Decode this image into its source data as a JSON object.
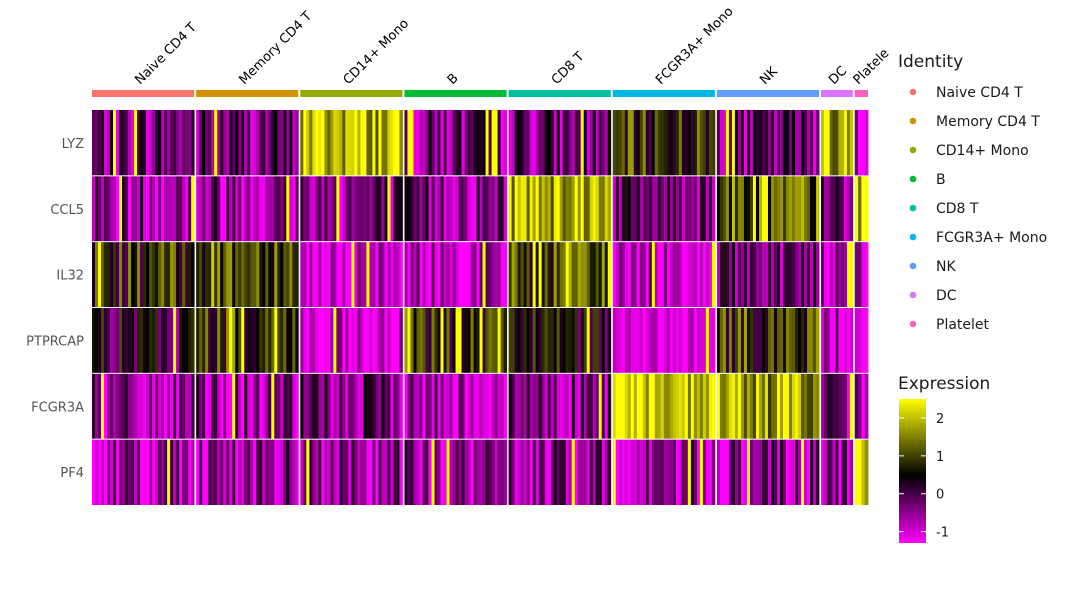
{
  "chart_data": {
    "type": "heatmap",
    "title": "",
    "genes": [
      "LYZ",
      "CCL5",
      "IL32",
      "PTPRCAP",
      "FCGR3A",
      "PF4"
    ],
    "clusters": [
      {
        "name": "Naive CD4 T",
        "color": "#f8766d",
        "label": "Naive CD4 T",
        "rel_cells": 100
      },
      {
        "name": "Memory CD4 T",
        "color": "#d39200",
        "label": "Memory CD4 T",
        "rel_cells": 100
      },
      {
        "name": "CD14+ Mono",
        "color": "#93aa00",
        "label": "CD14+ Mono",
        "rel_cells": 100
      },
      {
        "name": "B",
        "color": "#00ba38",
        "label": "B",
        "rel_cells": 100
      },
      {
        "name": "CD8 T",
        "color": "#00c19f",
        "label": "CD8 T",
        "rel_cells": 100
      },
      {
        "name": "FCGR3A+ Mono",
        "color": "#00b9e3",
        "label": "FCGR3A+ Mono",
        "rel_cells": 100
      },
      {
        "name": "NK",
        "color": "#619cff",
        "label": "NK",
        "rel_cells": 100
      },
      {
        "name": "DC",
        "color": "#db72fb",
        "label": "DC",
        "rel_cells": 31
      },
      {
        "name": "Platelet",
        "color": "#ff61c3",
        "label": "Platele",
        "rel_cells": 13
      }
    ],
    "mean_expression": [
      [
        -0.3,
        -0.3,
        2.0,
        -0.4,
        -0.3,
        0.8,
        -0.3,
        1.7,
        -0.6
      ],
      [
        -0.5,
        -0.5,
        -0.4,
        -0.4,
        2.0,
        -0.2,
        1.2,
        -0.3,
        2.2
      ],
      [
        0.8,
        1.2,
        -1.1,
        -0.9,
        1.0,
        -0.8,
        -0.2,
        -0.9,
        -0.9
      ],
      [
        0.2,
        0.9,
        -1.2,
        0.8,
        0.4,
        -1.3,
        0.9,
        -0.7,
        -0.9
      ],
      [
        -0.7,
        -0.6,
        -0.4,
        -0.7,
        -0.4,
        2.2,
        1.8,
        -0.6,
        -0.8
      ],
      [
        -0.6,
        -0.6,
        -0.6,
        -0.6,
        -0.6,
        -0.6,
        -0.6,
        -0.6,
        2.4
      ]
    ],
    "color_scale": {
      "low": "#ff00ff",
      "mid": "#000000",
      "high": "#ffff00",
      "domain": [
        -1.3,
        0.5,
        2.5
      ]
    },
    "legend_identity": {
      "title": "Identity",
      "items": [
        "Naive CD4 T",
        "Memory CD4 T",
        "CD14+ Mono",
        "B",
        "CD8 T",
        "FCGR3A+ Mono",
        "NK",
        "DC",
        "Platelet"
      ]
    },
    "legend_expression": {
      "title": "Expression",
      "ticks": [
        2,
        1,
        0,
        -1
      ],
      "range": [
        -1.3,
        2.5
      ]
    }
  }
}
